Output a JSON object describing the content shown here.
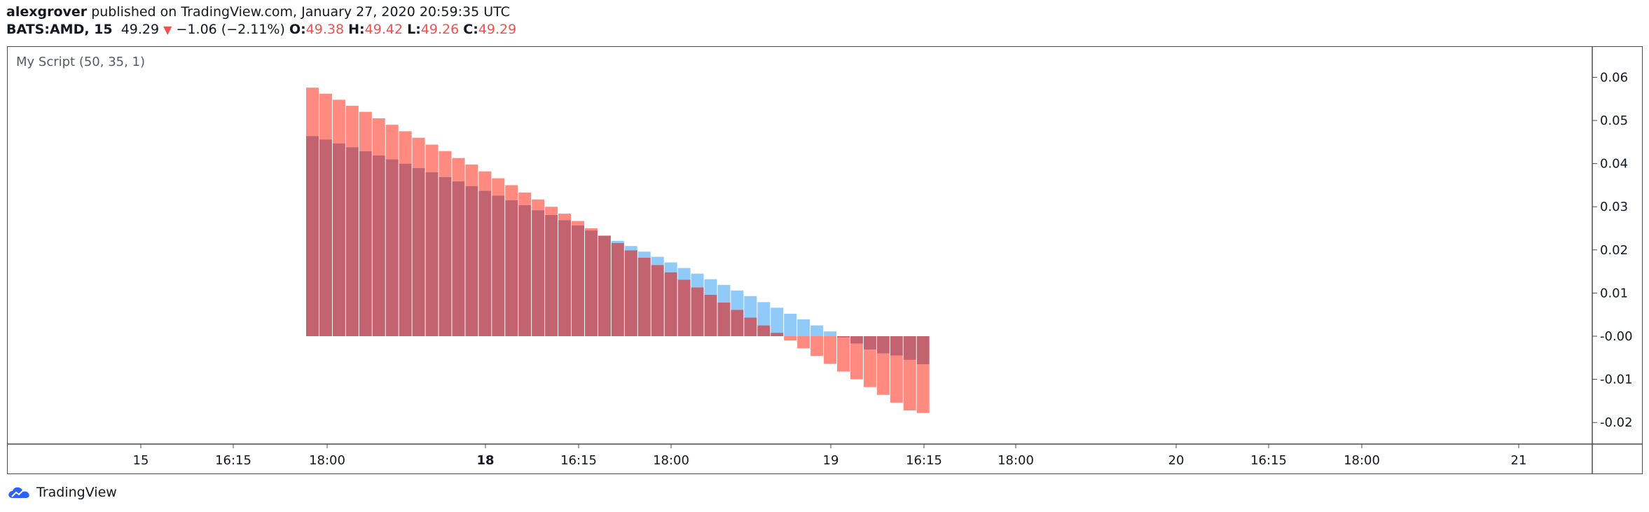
{
  "header": {
    "author": "alexgrover",
    "published_text": "published on TradingView.com, January 27, 2020 20:59:35 UTC",
    "symbol": "BATS:AMD, 15",
    "price": "49.29",
    "change": "−1.06 (−2.11%)",
    "o_label": "O:",
    "o_value": "49.38",
    "h_label": "H:",
    "h_value": "49.42",
    "l_label": "L:",
    "l_value": "49.26",
    "c_label": "C:",
    "c_value": "49.29"
  },
  "indicator_title": "My Script (50, 35, 1)",
  "brand": {
    "name": "TradingView"
  },
  "colors": {
    "red": "#ef5350",
    "blue": "#64b5f6",
    "overlap": "#c2636f",
    "text": "#131722",
    "border": "#4a4a4a"
  },
  "chart_data": {
    "type": "bar",
    "ylim": [
      -0.025,
      0.063
    ],
    "y_ticks": [
      0.06,
      0.05,
      0.04,
      0.03,
      0.02,
      0.01,
      -0.0,
      -0.01,
      -0.02
    ],
    "y_tick_labels": [
      "0.06",
      "0.05",
      "0.04",
      "0.03",
      "0.02",
      "0.01",
      "-0.00",
      "-0.01",
      "-0.02"
    ],
    "x_tick_labels": [
      {
        "label": "15",
        "bold": false
      },
      {
        "label": "16:15",
        "bold": false
      },
      {
        "label": "18:00",
        "bold": false
      },
      {
        "label": "18",
        "bold": true
      },
      {
        "label": "16:15",
        "bold": false
      },
      {
        "label": "18:00",
        "bold": false
      },
      {
        "label": "19",
        "bold": false
      },
      {
        "label": "16:15",
        "bold": false
      },
      {
        "label": "18:00",
        "bold": false
      },
      {
        "label": "20",
        "bold": false
      },
      {
        "label": "16:15",
        "bold": false
      },
      {
        "label": "18:00",
        "bold": false
      },
      {
        "label": "21",
        "bold": false
      }
    ],
    "series": [
      {
        "values": [
          0.0576,
          0.0562,
          0.0548,
          0.0534,
          0.052,
          0.0505,
          0.049,
          0.0475,
          0.046,
          0.0444,
          0.0429,
          0.0413,
          0.0398,
          0.0382,
          0.0366,
          0.035,
          0.0333,
          0.0317,
          0.03,
          0.0284,
          0.0267,
          0.025,
          0.0233,
          0.0216,
          0.0199,
          0.0182,
          0.0165,
          0.0148,
          0.0131,
          0.0113,
          0.0096,
          0.0078,
          0.0061,
          0.0043,
          0.0025,
          0.0008,
          -0.001,
          -0.0028,
          -0.0046,
          -0.0064,
          -0.0082,
          -0.01,
          -0.0118,
          -0.0136,
          -0.0154,
          -0.0172,
          -0.0178
        ]
      },
      {
        "values": [
          0.0464,
          0.0456,
          0.0447,
          0.0438,
          0.0429,
          0.0419,
          0.041,
          0.04,
          0.039,
          0.038,
          0.0369,
          0.0359,
          0.0348,
          0.0337,
          0.0326,
          0.0315,
          0.0304,
          0.0292,
          0.0281,
          0.0269,
          0.0257,
          0.0245,
          0.0233,
          0.0221,
          0.0209,
          0.0196,
          0.0184,
          0.0171,
          0.0158,
          0.0145,
          0.0132,
          0.0119,
          0.0106,
          0.0093,
          0.0079,
          0.0066,
          0.0052,
          0.0039,
          0.0025,
          0.0011,
          -0.0003,
          -0.0017,
          -0.0031,
          -0.004,
          -0.0045,
          -0.0055,
          -0.0065
        ]
      }
    ]
  }
}
